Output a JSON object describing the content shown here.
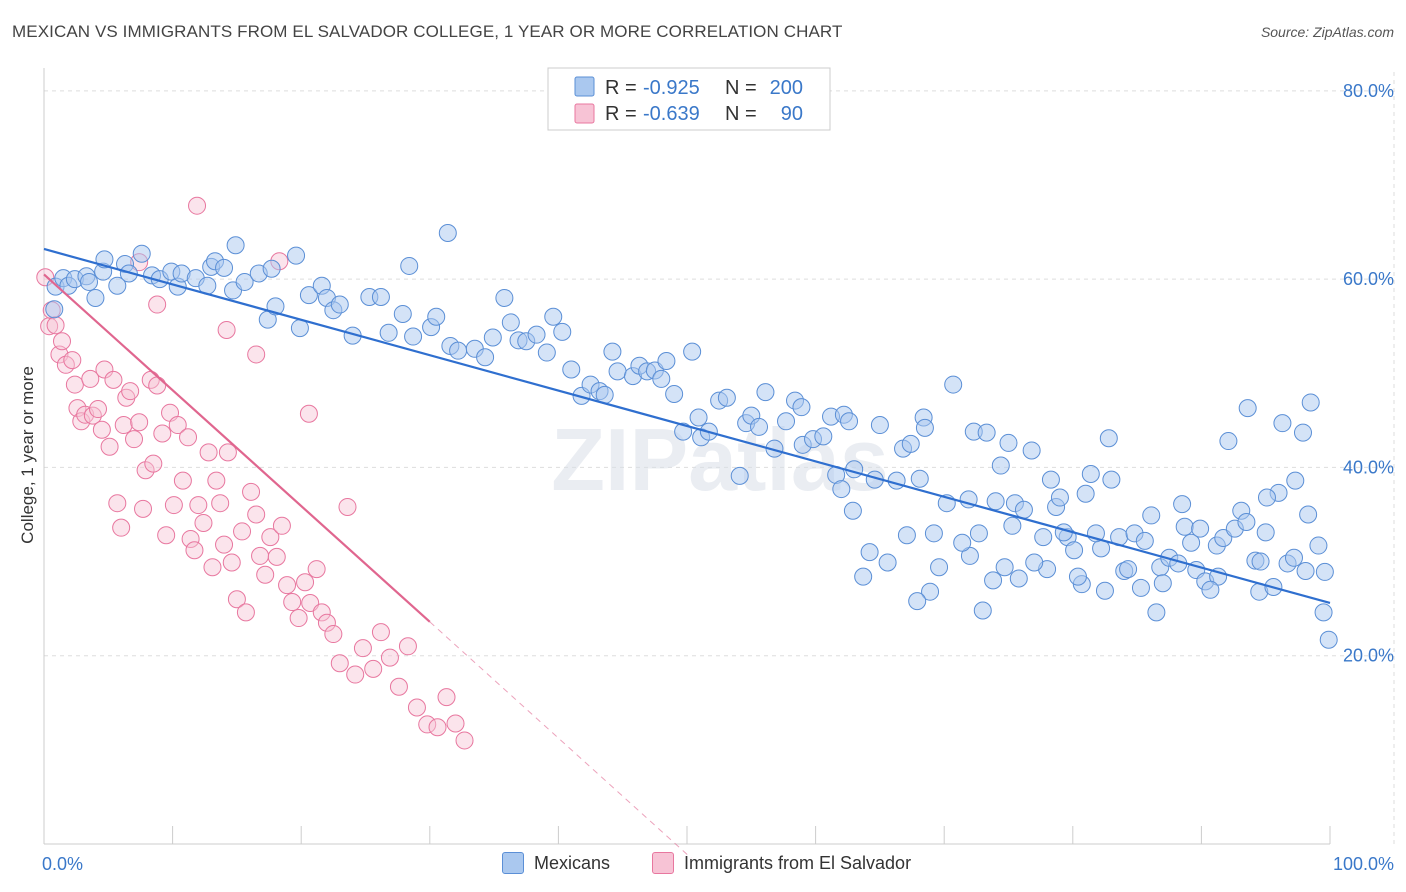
{
  "header": {
    "title": "MEXICAN VS IMMIGRANTS FROM EL SALVADOR COLLEGE, 1 YEAR OR MORE CORRELATION CHART",
    "source": "Source: ZipAtlas.com"
  },
  "watermark": "ZIPatlas",
  "colors": {
    "blue_fill": "#aac8ef",
    "blue_stroke": "#5b8fd6",
    "blue_line": "#2f6fcf",
    "pink_fill": "#f7c3d5",
    "pink_stroke": "#e8779f",
    "pink_line": "#e0668f",
    "text_blue": "#3a78c9",
    "grid": "#dddddd"
  },
  "legend": {
    "rows": [
      {
        "r_label": "R =",
        "r_value": "-0.925",
        "n_label": "N =",
        "n_value": "200"
      },
      {
        "r_label": "R =",
        "r_value": "-0.639",
        "n_label": "N =",
        "n_value": "90"
      }
    ]
  },
  "bottom_legend": {
    "mexicans": "Mexicans",
    "salvador": "Immigrants from El Salvador"
  },
  "chart_data": {
    "type": "scatter",
    "title": "MEXICAN VS IMMIGRANTS FROM EL SALVADOR COLLEGE, 1 YEAR OR MORE CORRELATION CHART",
    "xlabel": "",
    "ylabel": "College, 1 year or more",
    "xlim": [
      0,
      100
    ],
    "ylim": [
      0,
      82
    ],
    "x_tick_labels": [
      "0.0%",
      "100.0%"
    ],
    "y_ticks": [
      20,
      40,
      60,
      80
    ],
    "y_tick_labels": [
      "20.0%",
      "40.0%",
      "60.0%",
      "80.0%"
    ],
    "grid": true,
    "legend_placement": "top-center",
    "series": [
      {
        "name": "Mexicans",
        "color": "#aac8ef",
        "trend": {
          "x": [
            0,
            100
          ],
          "y": [
            63.2,
            25.6
          ]
        },
        "points": [
          [
            0.8,
            56.8
          ],
          [
            0.9,
            59.2
          ],
          [
            1.5,
            60.1
          ],
          [
            1.9,
            59.3
          ],
          [
            2.4,
            60.0
          ],
          [
            3.3,
            60.3
          ],
          [
            3.5,
            59.7
          ],
          [
            4.0,
            58.0
          ],
          [
            4.6,
            60.8
          ],
          [
            4.7,
            62.1
          ],
          [
            5.7,
            59.3
          ],
          [
            6.3,
            61.6
          ],
          [
            6.6,
            60.6
          ],
          [
            7.6,
            62.7
          ],
          [
            8.4,
            60.4
          ],
          [
            9.0,
            60.0
          ],
          [
            9.9,
            60.8
          ],
          [
            10.4,
            59.2
          ],
          [
            10.7,
            60.6
          ],
          [
            11.8,
            60.1
          ],
          [
            12.7,
            59.3
          ],
          [
            13.0,
            61.3
          ],
          [
            13.3,
            61.9
          ],
          [
            14.0,
            61.2
          ],
          [
            14.7,
            58.8
          ],
          [
            14.9,
            63.6
          ],
          [
            15.6,
            59.7
          ],
          [
            16.7,
            60.6
          ],
          [
            17.4,
            55.7
          ],
          [
            17.7,
            61.1
          ],
          [
            18.0,
            57.1
          ],
          [
            19.6,
            62.5
          ],
          [
            19.9,
            54.8
          ],
          [
            20.6,
            58.3
          ],
          [
            21.6,
            59.3
          ],
          [
            22.0,
            58.0
          ],
          [
            22.5,
            56.7
          ],
          [
            23.0,
            57.3
          ],
          [
            24.0,
            54.0
          ],
          [
            25.3,
            58.1
          ],
          [
            26.2,
            58.1
          ],
          [
            26.8,
            54.3
          ],
          [
            27.9,
            56.3
          ],
          [
            28.4,
            61.4
          ],
          [
            28.7,
            53.9
          ],
          [
            30.1,
            54.9
          ],
          [
            30.5,
            56.0
          ],
          [
            31.4,
            64.9
          ],
          [
            31.6,
            52.9
          ],
          [
            32.2,
            52.4
          ],
          [
            33.5,
            52.6
          ],
          [
            34.3,
            51.7
          ],
          [
            34.9,
            53.8
          ],
          [
            35.8,
            58.0
          ],
          [
            36.3,
            55.4
          ],
          [
            36.9,
            53.5
          ],
          [
            37.5,
            53.4
          ],
          [
            38.3,
            54.1
          ],
          [
            39.1,
            52.2
          ],
          [
            39.6,
            56.0
          ],
          [
            40.3,
            54.4
          ],
          [
            41.0,
            50.4
          ],
          [
            41.8,
            47.6
          ],
          [
            42.5,
            48.8
          ],
          [
            43.2,
            48.1
          ],
          [
            43.6,
            47.7
          ],
          [
            44.2,
            52.3
          ],
          [
            44.6,
            50.2
          ],
          [
            45.8,
            49.7
          ],
          [
            46.3,
            50.8
          ],
          [
            46.9,
            50.2
          ],
          [
            47.5,
            50.3
          ],
          [
            48.0,
            49.4
          ],
          [
            48.4,
            51.3
          ],
          [
            49.0,
            47.8
          ],
          [
            49.7,
            43.8
          ],
          [
            50.4,
            52.3
          ],
          [
            50.9,
            45.3
          ],
          [
            51.1,
            43.2
          ],
          [
            51.7,
            43.8
          ],
          [
            52.5,
            47.1
          ],
          [
            53.1,
            47.4
          ],
          [
            54.1,
            39.1
          ],
          [
            54.6,
            44.7
          ],
          [
            55.0,
            45.5
          ],
          [
            55.6,
            44.3
          ],
          [
            56.1,
            48.0
          ],
          [
            56.8,
            42.0
          ],
          [
            57.7,
            44.9
          ],
          [
            58.4,
            47.1
          ],
          [
            58.9,
            46.4
          ],
          [
            59.0,
            42.4
          ],
          [
            59.8,
            43.0
          ],
          [
            60.6,
            43.3
          ],
          [
            61.2,
            45.4
          ],
          [
            61.6,
            39.2
          ],
          [
            62.2,
            45.6
          ],
          [
            62.6,
            44.9
          ],
          [
            63.0,
            39.8
          ],
          [
            64.6,
            38.7
          ],
          [
            65.0,
            44.5
          ],
          [
            66.8,
            42.0
          ],
          [
            67.4,
            42.5
          ],
          [
            68.1,
            38.8
          ],
          [
            68.4,
            45.3
          ],
          [
            68.5,
            44.2
          ],
          [
            69.2,
            33.0
          ],
          [
            70.7,
            48.8
          ],
          [
            71.9,
            36.6
          ],
          [
            72.3,
            43.8
          ],
          [
            72.7,
            33.0
          ],
          [
            73.3,
            43.7
          ],
          [
            74.0,
            36.4
          ],
          [
            74.4,
            40.2
          ],
          [
            75.0,
            42.6
          ],
          [
            75.5,
            36.2
          ],
          [
            76.2,
            35.5
          ],
          [
            77.7,
            32.6
          ],
          [
            78.3,
            38.7
          ],
          [
            78.7,
            35.8
          ],
          [
            79.0,
            36.8
          ],
          [
            79.6,
            32.6
          ],
          [
            80.1,
            31.2
          ],
          [
            81.0,
            37.2
          ],
          [
            81.4,
            39.3
          ],
          [
            82.2,
            31.4
          ],
          [
            82.8,
            43.1
          ],
          [
            83.6,
            32.6
          ],
          [
            84.0,
            29.0
          ],
          [
            84.8,
            33.0
          ],
          [
            85.6,
            32.2
          ],
          [
            86.1,
            34.9
          ],
          [
            86.8,
            29.4
          ],
          [
            87.5,
            30.4
          ],
          [
            88.2,
            29.8
          ],
          [
            88.7,
            33.7
          ],
          [
            89.2,
            32.0
          ],
          [
            89.6,
            29.1
          ],
          [
            90.3,
            27.9
          ],
          [
            91.2,
            31.7
          ],
          [
            91.7,
            32.5
          ],
          [
            92.6,
            33.5
          ],
          [
            93.6,
            46.3
          ],
          [
            93.1,
            35.4
          ],
          [
            94.2,
            30.1
          ],
          [
            94.5,
            26.8
          ],
          [
            95.0,
            33.1
          ],
          [
            95.6,
            27.3
          ],
          [
            96.0,
            37.3
          ],
          [
            96.7,
            29.8
          ],
          [
            97.2,
            30.4
          ],
          [
            98.1,
            29.0
          ],
          [
            98.5,
            46.9
          ],
          [
            98.3,
            35.0
          ],
          [
            99.1,
            31.7
          ],
          [
            99.5,
            24.6
          ],
          [
            99.6,
            28.9
          ],
          [
            99.9,
            21.7
          ],
          [
            97.9,
            43.7
          ],
          [
            97.3,
            38.6
          ],
          [
            96.3,
            44.7
          ],
          [
            95.1,
            36.8
          ],
          [
            94.6,
            30.0
          ],
          [
            93.5,
            34.2
          ],
          [
            92.1,
            42.8
          ],
          [
            91.3,
            28.4
          ],
          [
            90.7,
            27.0
          ],
          [
            89.9,
            33.5
          ],
          [
            88.5,
            36.1
          ],
          [
            87.0,
            27.7
          ],
          [
            86.5,
            24.6
          ],
          [
            85.3,
            27.2
          ],
          [
            84.3,
            29.2
          ],
          [
            83.0,
            38.7
          ],
          [
            82.5,
            26.9
          ],
          [
            81.8,
            33.0
          ],
          [
            80.7,
            27.6
          ],
          [
            80.4,
            28.4
          ],
          [
            79.3,
            33.1
          ],
          [
            78.0,
            29.2
          ],
          [
            77.0,
            29.9
          ],
          [
            76.8,
            41.8
          ],
          [
            75.8,
            28.2
          ],
          [
            75.3,
            33.8
          ],
          [
            74.7,
            29.4
          ],
          [
            73.8,
            28.0
          ],
          [
            73.0,
            24.8
          ],
          [
            72.0,
            30.6
          ],
          [
            71.4,
            32.0
          ],
          [
            70.2,
            36.2
          ],
          [
            69.6,
            29.4
          ],
          [
            68.9,
            26.8
          ],
          [
            67.9,
            25.8
          ],
          [
            67.1,
            32.8
          ],
          [
            66.3,
            38.6
          ],
          [
            65.6,
            29.9
          ],
          [
            64.2,
            31.0
          ],
          [
            63.7,
            28.4
          ],
          [
            62.9,
            35.4
          ],
          [
            62.0,
            37.7
          ]
        ]
      },
      {
        "name": "Immigrants from El Salvador",
        "color": "#f7c3d5",
        "trend": {
          "x": [
            0,
            30
          ],
          "y": [
            60.5,
            23.6
          ]
        },
        "trend_dashed": {
          "x": [
            30,
            53
          ],
          "y": [
            23.6,
            -4.8
          ]
        },
        "points": [
          [
            0.1,
            60.2
          ],
          [
            0.4,
            55.0
          ],
          [
            0.6,
            56.7
          ],
          [
            0.9,
            55.1
          ],
          [
            1.2,
            52.0
          ],
          [
            1.4,
            53.4
          ],
          [
            1.7,
            50.9
          ],
          [
            2.2,
            51.4
          ],
          [
            2.4,
            48.8
          ],
          [
            2.6,
            46.3
          ],
          [
            2.9,
            44.9
          ],
          [
            3.2,
            45.6
          ],
          [
            3.6,
            49.4
          ],
          [
            3.8,
            45.5
          ],
          [
            4.2,
            46.2
          ],
          [
            4.5,
            44.0
          ],
          [
            4.7,
            50.4
          ],
          [
            5.1,
            42.2
          ],
          [
            5.4,
            49.3
          ],
          [
            5.7,
            36.2
          ],
          [
            6.0,
            33.6
          ],
          [
            6.2,
            44.5
          ],
          [
            6.4,
            47.4
          ],
          [
            6.7,
            48.1
          ],
          [
            7.0,
            43.0
          ],
          [
            7.4,
            44.8
          ],
          [
            7.7,
            35.6
          ],
          [
            7.9,
            39.7
          ],
          [
            8.3,
            49.3
          ],
          [
            8.5,
            40.4
          ],
          [
            8.8,
            48.7
          ],
          [
            9.2,
            43.6
          ],
          [
            9.5,
            32.8
          ],
          [
            9.8,
            45.8
          ],
          [
            10.1,
            36.0
          ],
          [
            10.4,
            44.5
          ],
          [
            10.8,
            38.6
          ],
          [
            11.2,
            43.2
          ],
          [
            11.4,
            32.4
          ],
          [
            11.7,
            31.2
          ],
          [
            12.0,
            36.0
          ],
          [
            12.4,
            34.1
          ],
          [
            12.8,
            41.6
          ],
          [
            13.1,
            29.4
          ],
          [
            13.4,
            38.6
          ],
          [
            13.7,
            36.2
          ],
          [
            14.0,
            31.8
          ],
          [
            14.3,
            41.6
          ],
          [
            14.6,
            29.9
          ],
          [
            15.0,
            26.0
          ],
          [
            15.4,
            33.2
          ],
          [
            15.7,
            24.6
          ],
          [
            16.1,
            37.4
          ],
          [
            16.5,
            35.0
          ],
          [
            16.8,
            30.6
          ],
          [
            17.2,
            28.6
          ],
          [
            17.6,
            32.6
          ],
          [
            18.1,
            30.5
          ],
          [
            18.5,
            33.8
          ],
          [
            18.9,
            27.5
          ],
          [
            19.3,
            25.7
          ],
          [
            19.8,
            24.0
          ],
          [
            20.3,
            27.8
          ],
          [
            20.7,
            25.6
          ],
          [
            21.2,
            29.2
          ],
          [
            21.6,
            24.6
          ],
          [
            22.0,
            23.5
          ],
          [
            22.5,
            22.3
          ],
          [
            23.0,
            19.2
          ],
          [
            23.6,
            35.8
          ],
          [
            24.2,
            18.0
          ],
          [
            24.8,
            20.8
          ],
          [
            25.6,
            18.6
          ],
          [
            26.2,
            22.5
          ],
          [
            26.9,
            19.8
          ],
          [
            27.6,
            16.7
          ],
          [
            28.3,
            21.0
          ],
          [
            29.0,
            14.5
          ],
          [
            29.8,
            12.7
          ],
          [
            30.6,
            12.4
          ],
          [
            31.3,
            15.6
          ],
          [
            32.0,
            12.8
          ],
          [
            32.7,
            11.0
          ],
          [
            11.9,
            67.8
          ],
          [
            7.4,
            61.8
          ],
          [
            8.8,
            57.3
          ],
          [
            14.2,
            54.6
          ],
          [
            16.5,
            52.0
          ],
          [
            18.3,
            61.9
          ],
          [
            20.6,
            45.7
          ]
        ]
      }
    ]
  }
}
